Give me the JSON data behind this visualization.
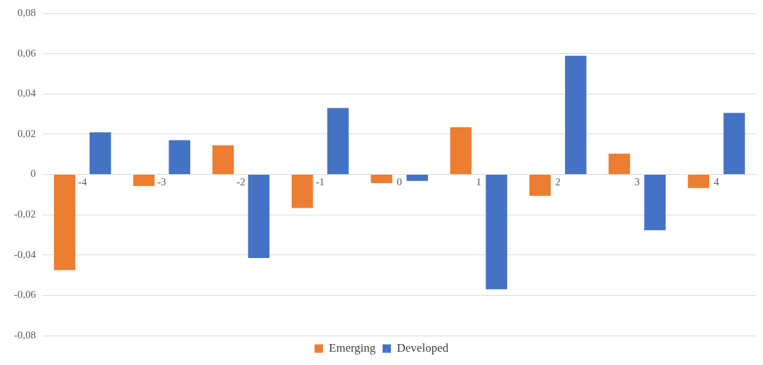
{
  "chart_data": {
    "type": "bar",
    "categories": [
      "-4",
      "-3",
      "-2",
      "-1",
      "0",
      "1",
      "2",
      "3",
      "4"
    ],
    "series": [
      {
        "name": "Emerging",
        "color": "#ed7d31",
        "values": [
          -0.0475,
          -0.0057,
          0.0145,
          -0.0167,
          -0.0043,
          0.0234,
          -0.0106,
          0.0103,
          -0.0067
        ]
      },
      {
        "name": "Developed",
        "color": "#4472c4",
        "values": [
          0.0209,
          0.017,
          -0.0415,
          0.033,
          -0.0032,
          -0.057,
          0.0589,
          -0.0277,
          0.0305
        ]
      }
    ],
    "ylim": [
      -0.08,
      0.08
    ],
    "yticks": [
      {
        "value": -0.08,
        "label": "-0,08"
      },
      {
        "value": -0.06,
        "label": "-0,06"
      },
      {
        "value": -0.04,
        "label": "-0,04"
      },
      {
        "value": -0.02,
        "label": "-0,02"
      },
      {
        "value": 0,
        "label": "0"
      },
      {
        "value": 0.02,
        "label": "0,02"
      },
      {
        "value": 0.04,
        "label": "0,04"
      },
      {
        "value": 0.06,
        "label": "0,06"
      },
      {
        "value": 0.08,
        "label": "0,08"
      }
    ],
    "grid": "y",
    "legend": "bottom"
  }
}
